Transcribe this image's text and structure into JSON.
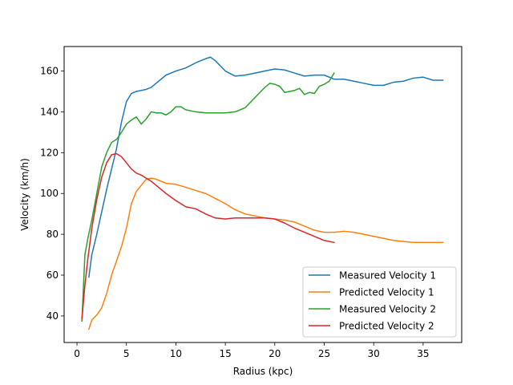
{
  "chart_data": {
    "type": "line",
    "title": "",
    "xlabel": "Radius (kpc)",
    "ylabel": "Velocity (km/h)",
    "xlim": [
      -1.3,
      38.9
    ],
    "ylim": [
      27,
      172
    ],
    "xticks": [
      0,
      5,
      10,
      15,
      20,
      25,
      30,
      35
    ],
    "yticks": [
      40,
      60,
      80,
      100,
      120,
      140,
      160
    ],
    "grid": false,
    "legend_position": "lower-right",
    "series": [
      {
        "name": "Measured Velocity 1",
        "color": "#1f77b4",
        "x": [
          1.2,
          1.5,
          2,
          2.5,
          3,
          3.5,
          4,
          4.5,
          5,
          5.5,
          6,
          6.5,
          7,
          7.5,
          8,
          9,
          10,
          11,
          12,
          13,
          13.5,
          14,
          15,
          16,
          17,
          18,
          19,
          20,
          21,
          22,
          23,
          24,
          25,
          26,
          27,
          28,
          29,
          30,
          31,
          32,
          33,
          34,
          35,
          36,
          37
        ],
        "y": [
          59,
          70,
          80,
          91,
          102,
          112,
          122,
          135,
          145,
          149,
          150,
          150.5,
          151,
          152,
          154,
          158,
          160,
          161.5,
          164,
          166,
          166.8,
          165,
          160,
          157.5,
          158,
          159,
          160,
          161,
          160.5,
          159,
          157.5,
          158,
          158,
          156,
          156,
          155,
          154,
          153,
          153,
          154.5,
          155,
          156.5,
          157,
          155.5,
          155.5
        ]
      },
      {
        "name": "Predicted Velocity 1",
        "color": "#ff7f0e",
        "x": [
          1.2,
          1.5,
          2,
          2.5,
          3,
          3.5,
          4,
          4.5,
          5,
          5.5,
          6,
          6.5,
          7,
          7.5,
          8,
          9,
          10,
          11,
          12,
          13,
          14,
          15,
          16,
          17,
          18,
          19,
          20,
          21,
          22,
          23,
          24,
          25,
          26,
          27,
          28,
          29,
          30,
          31,
          32,
          33,
          34,
          35,
          36,
          37
        ],
        "y": [
          33.5,
          38,
          40.5,
          44,
          51,
          60,
          67,
          74,
          83,
          95,
          101,
          104,
          107,
          107.5,
          107,
          105,
          104.5,
          103,
          101.5,
          100,
          97.5,
          95,
          92,
          90,
          89,
          88,
          87.5,
          87,
          86,
          84,
          82,
          81,
          81,
          81.5,
          81,
          80,
          79,
          78,
          77,
          76.5,
          76,
          76,
          76,
          76
        ]
      },
      {
        "name": "Measured Velocity 2",
        "color": "#2ca02c",
        "x": [
          0.5,
          0.8,
          1.1,
          1.5,
          2,
          2.5,
          3,
          3.5,
          4,
          4.5,
          5,
          5.5,
          6,
          6.5,
          7,
          7.5,
          8,
          8.5,
          9,
          9.5,
          10,
          10.5,
          11,
          12,
          13,
          14,
          15,
          16,
          17,
          18,
          19,
          19.5,
          20,
          20.5,
          21,
          21.5,
          22,
          22.5,
          23,
          23.5,
          24,
          24.5,
          25,
          25.5,
          26
        ],
        "y": [
          37.5,
          70,
          78,
          87,
          100,
          113,
          120,
          125,
          126.5,
          130,
          134,
          136,
          137.5,
          134,
          136.5,
          140,
          139.5,
          139.5,
          138.5,
          140,
          142.5,
          142.5,
          141,
          140,
          139.5,
          139.5,
          139.5,
          140,
          142,
          147,
          152,
          154,
          153.5,
          152.5,
          149.5,
          150,
          150.5,
          151.5,
          148.5,
          149.5,
          149,
          152.5,
          153.5,
          155,
          159
        ]
      },
      {
        "name": "Predicted Velocity 2",
        "color": "#d62728",
        "x": [
          0.5,
          0.8,
          1.1,
          1.5,
          2,
          2.5,
          3,
          3.5,
          4,
          4.5,
          5,
          5.5,
          6,
          6.5,
          7,
          7.5,
          8,
          9,
          10,
          11,
          12,
          13,
          14,
          15,
          16,
          17,
          18,
          19,
          20,
          21,
          22,
          23,
          24,
          25,
          26
        ],
        "y": [
          38.5,
          55,
          68,
          83,
          97,
          108,
          115,
          119,
          119.5,
          118,
          115,
          112,
          110,
          109,
          107.5,
          106,
          104,
          100,
          96.5,
          93.5,
          92.5,
          90,
          88,
          87.5,
          88,
          88,
          88,
          88,
          87.5,
          85.5,
          83,
          81,
          79,
          77,
          76
        ]
      }
    ]
  }
}
